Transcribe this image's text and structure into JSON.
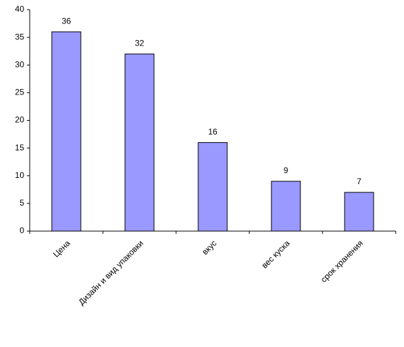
{
  "chart_data": {
    "type": "bar",
    "categories": [
      "Цена",
      "Дизайн и вид упаковки",
      "вкус",
      "вес куска",
      "срок хранения"
    ],
    "values": [
      36,
      32,
      16,
      9,
      7
    ],
    "color": "#9999ff",
    "ylim": [
      0,
      40
    ],
    "yticks": [
      0,
      5,
      10,
      15,
      20,
      25,
      30,
      35,
      40
    ],
    "grid": false
  }
}
